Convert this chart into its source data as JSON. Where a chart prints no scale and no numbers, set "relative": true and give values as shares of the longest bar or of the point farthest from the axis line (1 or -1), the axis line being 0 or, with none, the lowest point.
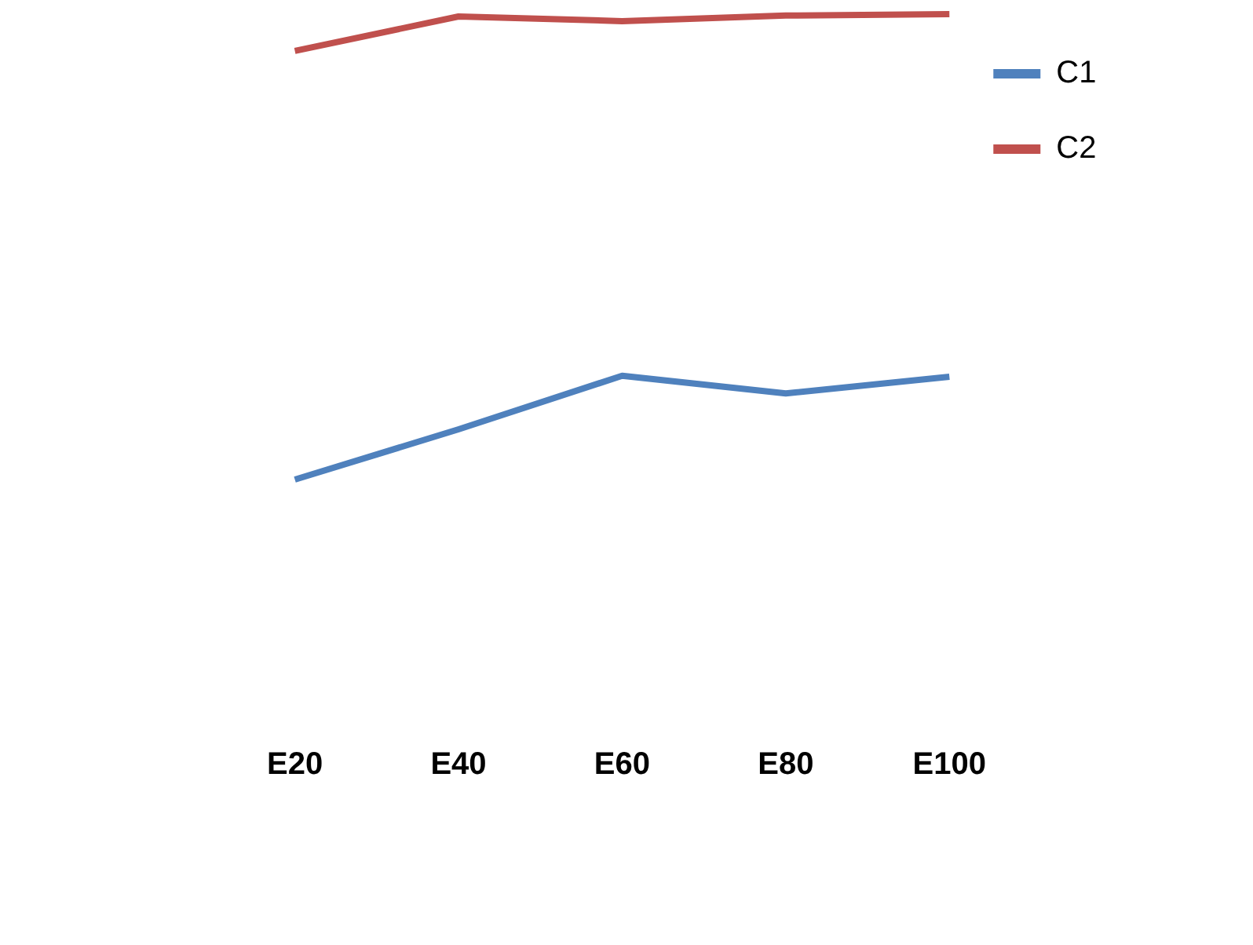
{
  "chart_data": {
    "type": "line",
    "relative": true,
    "categories": [
      "E20",
      "E40",
      "E60",
      "E80",
      "E100"
    ],
    "series": [
      {
        "name": "C1",
        "color": "#4f81bd",
        "values": [
          0,
          0.108,
          0.223,
          0.185,
          0.221
        ]
      },
      {
        "name": "C2",
        "color": "#c0504d",
        "values": [
          0.921,
          0.995,
          0.985,
          0.997,
          1
        ]
      }
    ],
    "legend": "top right",
    "grid": false,
    "marker": "none"
  }
}
